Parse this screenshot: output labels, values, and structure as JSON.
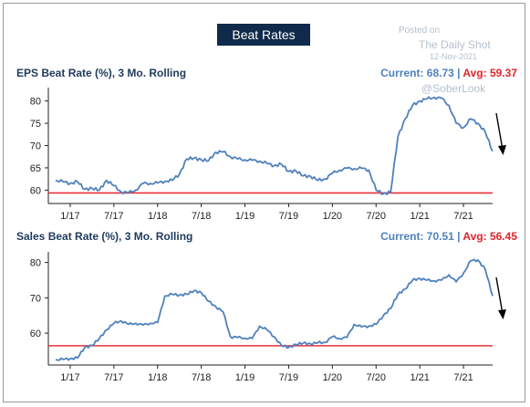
{
  "header": {
    "badge": "Beat Rates"
  },
  "watermark": {
    "posted": "Posted on",
    "source": "The Daily Shot",
    "date": "12-Nov-2021",
    "handle": "@SoberLook"
  },
  "colors": {
    "line": "#4f81bd",
    "avg_line": "#e8323a",
    "axis": "#222222",
    "title": "#1f3a5c"
  },
  "chart_data": [
    {
      "type": "line",
      "title": "EPS Beat Rate (%), 3 Mo. Rolling",
      "current_label": "Current: 68.73",
      "separator": " | ",
      "avg_label": "Avg: 59.37",
      "current": 68.73,
      "avg": 59.37,
      "x_ticks": [
        "1/17",
        "7/17",
        "1/18",
        "7/18",
        "1/19",
        "7/19",
        "1/20",
        "7/20",
        "1/21",
        "7/21"
      ],
      "y_ticks": [
        60,
        65,
        70,
        75,
        80
      ],
      "ylim": [
        57,
        83
      ],
      "annotation": "downward-arrow",
      "series": [
        {
          "x": [
            "2016-11",
            "2016-12",
            "2017-01",
            "2017-02",
            "2017-03",
            "2017-04",
            "2017-05",
            "2017-06",
            "2017-07",
            "2017-08",
            "2017-09",
            "2017-10",
            "2017-11",
            "2017-12",
            "2018-01",
            "2018-02",
            "2018-03",
            "2018-04",
            "2018-05",
            "2018-06",
            "2018-07",
            "2018-08",
            "2018-09",
            "2018-10",
            "2018-11",
            "2018-12",
            "2019-01",
            "2019-02",
            "2019-03",
            "2019-04",
            "2019-05",
            "2019-06",
            "2019-07",
            "2019-08",
            "2019-09",
            "2019-10",
            "2019-11",
            "2019-12",
            "2020-01",
            "2020-02",
            "2020-03",
            "2020-04",
            "2020-05",
            "2020-06",
            "2020-07",
            "2020-08",
            "2020-09",
            "2020-10",
            "2020-11",
            "2020-12",
            "2021-01",
            "2021-02",
            "2021-03",
            "2021-04",
            "2021-05",
            "2021-06",
            "2021-07",
            "2021-08",
            "2021-09",
            "2021-10",
            "2021-11"
          ],
          "values": [
            62.2,
            61.9,
            61.5,
            61.9,
            60.2,
            60.4,
            60.0,
            62.2,
            61.0,
            59.6,
            59.4,
            60.0,
            61.5,
            61.5,
            61.6,
            62.0,
            62.2,
            63.6,
            67.0,
            67.2,
            66.8,
            66.6,
            68.5,
            68.6,
            67.5,
            67.0,
            66.8,
            66.7,
            66.5,
            66.0,
            65.5,
            65.8,
            64.2,
            64.3,
            63.2,
            63.1,
            62.2,
            62.5,
            63.8,
            64.5,
            64.9,
            64.8,
            64.9,
            64.5,
            60.0,
            59.2,
            59.5,
            72.0,
            76.0,
            79.0,
            80.0,
            80.5,
            80.8,
            80.6,
            79.0,
            75.0,
            74.0,
            76.0,
            75.0,
            73.0,
            68.73
          ]
        }
      ]
    },
    {
      "type": "line",
      "title": "Sales Beat Rate (%), 3 Mo. Rolling",
      "current_label": "Current: 70.51",
      "separator": " | ",
      "avg_label": "Avg: 56.45",
      "current": 70.51,
      "avg": 56.45,
      "x_ticks": [
        "1/17",
        "7/17",
        "1/18",
        "7/18",
        "1/19",
        "7/19",
        "1/20",
        "7/20",
        "1/21",
        "7/21"
      ],
      "y_ticks": [
        60,
        70,
        80
      ],
      "ylim": [
        51,
        83
      ],
      "annotation": "downward-arrow",
      "series": [
        {
          "x": [
            "2016-11",
            "2016-12",
            "2017-01",
            "2017-02",
            "2017-03",
            "2017-04",
            "2017-05",
            "2017-06",
            "2017-07",
            "2017-08",
            "2017-09",
            "2017-10",
            "2017-11",
            "2017-12",
            "2018-01",
            "2018-02",
            "2018-03",
            "2018-04",
            "2018-05",
            "2018-06",
            "2018-07",
            "2018-08",
            "2018-09",
            "2018-10",
            "2018-11",
            "2018-12",
            "2019-01",
            "2019-02",
            "2019-03",
            "2019-04",
            "2019-05",
            "2019-06",
            "2019-07",
            "2019-08",
            "2019-09",
            "2019-10",
            "2019-11",
            "2019-12",
            "2020-01",
            "2020-02",
            "2020-03",
            "2020-04",
            "2020-05",
            "2020-06",
            "2020-07",
            "2020-08",
            "2020-09",
            "2020-10",
            "2020-11",
            "2020-12",
            "2021-01",
            "2021-02",
            "2021-03",
            "2021-04",
            "2021-05",
            "2021-06",
            "2021-07",
            "2021-08",
            "2021-09",
            "2021-10",
            "2021-11"
          ],
          "values": [
            52.5,
            52.6,
            52.8,
            53.0,
            56.0,
            56.5,
            58.5,
            61.0,
            62.8,
            63.5,
            62.5,
            62.8,
            62.3,
            62.8,
            63.0,
            70.5,
            71.0,
            70.8,
            71.0,
            72.0,
            71.5,
            69.0,
            67.5,
            66.0,
            59.0,
            58.8,
            58.6,
            58.5,
            62.0,
            61.0,
            59.0,
            56.5,
            56.0,
            56.8,
            57.2,
            57.0,
            57.3,
            57.4,
            59.0,
            58.5,
            58.8,
            62.5,
            61.8,
            62.0,
            62.5,
            65.0,
            67.0,
            71.0,
            72.5,
            75.0,
            75.5,
            75.0,
            74.8,
            75.0,
            76.5,
            74.5,
            77.0,
            80.5,
            80.7,
            78.0,
            70.51
          ]
        }
      ]
    }
  ]
}
